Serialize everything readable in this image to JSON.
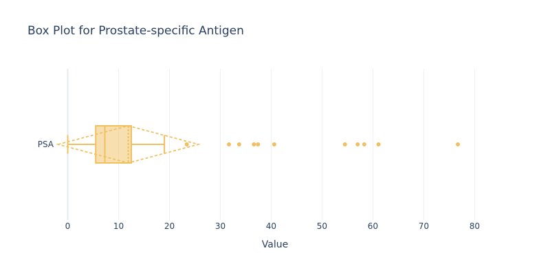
{
  "chart_data": {
    "type": "box",
    "title": "Box Plot for Prostate-specific Antigen",
    "xlabel": "Value",
    "ylabel": "",
    "xlim": [
      -2.5,
      84
    ],
    "x_ticks": [
      "0",
      "10",
      "20",
      "30",
      "40",
      "50",
      "60",
      "70",
      "80"
    ],
    "x_tick_values": [
      0,
      10,
      20,
      30,
      40,
      50,
      60,
      70,
      80
    ],
    "grid": true,
    "orientation": "horizontal",
    "categories": [
      "PSA"
    ],
    "series": [
      {
        "category": "PSA",
        "color": "#f0c060",
        "lower_fence": 0.0,
        "q1": 5.5,
        "median": 7.3,
        "q3": 12.5,
        "upper_fence": 19.0,
        "mean": 11.9,
        "sd": 13.8,
        "outliers": [
          23.4,
          31.7,
          33.7,
          36.6,
          37.4,
          40.6,
          54.5,
          57.0,
          58.3,
          61.1,
          76.7
        ]
      }
    ]
  }
}
